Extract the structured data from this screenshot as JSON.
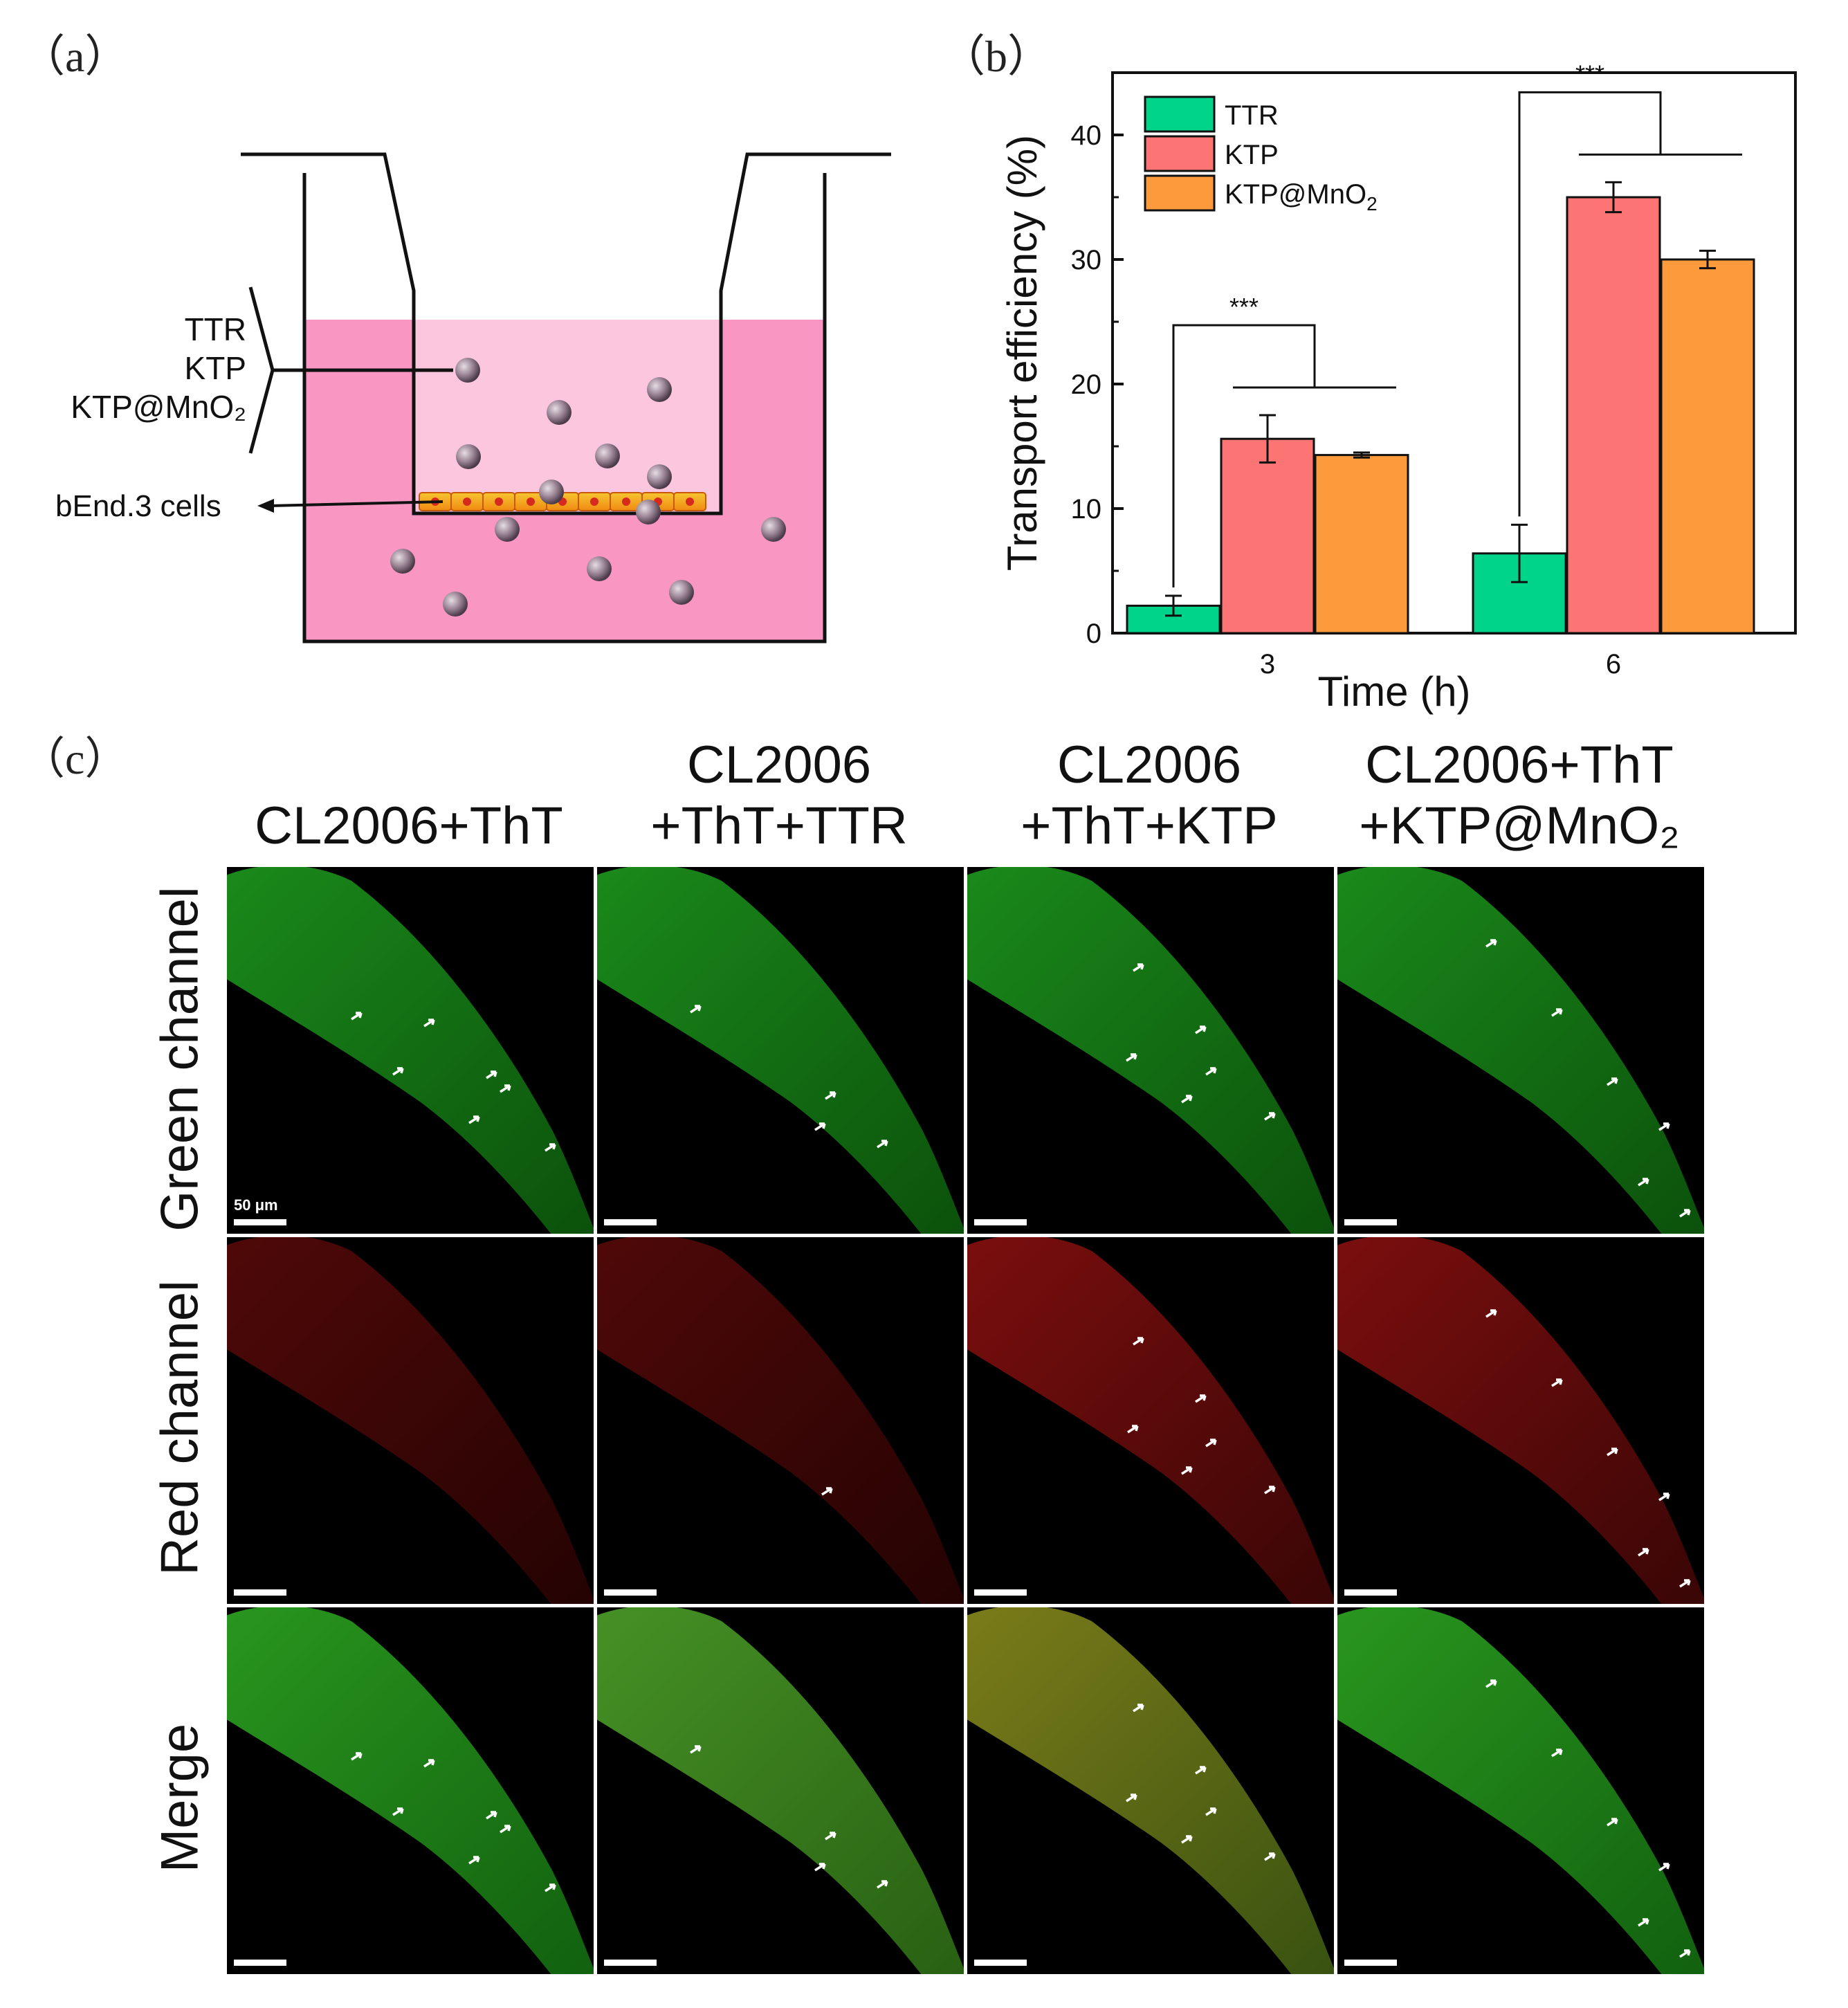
{
  "panels": {
    "a": "（a）",
    "b": "（b）",
    "c": "（c）"
  },
  "diagram": {
    "labels": [
      "TTR",
      "KTP",
      "KTP@MnO₂"
    ],
    "cells_label": "bEnd.3 cells"
  },
  "chart_data": {
    "type": "bar",
    "categories": [
      "3",
      "6"
    ],
    "series": [
      {
        "name": "TTR",
        "color": "#00d48a",
        "values": [
          2.2,
          6.4
        ],
        "errors": [
          0.8,
          2.3
        ]
      },
      {
        "name": "KTP",
        "color": "#fc7474",
        "values": [
          15.6,
          35.0
        ],
        "errors": [
          1.9,
          1.2
        ]
      },
      {
        "name": "KTP@MnO",
        "sub": "2",
        "color": "#fd9a3c",
        "values": [
          14.3,
          30.0
        ],
        "errors": [
          0.2,
          0.7
        ]
      }
    ],
    "xlabel": "Time (h)",
    "ylabel": "Transport efficiency (%)",
    "ylim": [
      0,
      45
    ],
    "yticks": [
      0,
      10,
      20,
      30,
      40
    ],
    "significance": [
      "***",
      "***"
    ],
    "legend": "top-left"
  },
  "microscopy": {
    "columns": [
      [
        "CL2006+ThT"
      ],
      [
        "CL2006",
        "+ThT+TTR"
      ],
      [
        "CL2006",
        "+ThT+KTP"
      ],
      [
        "CL2006+ThT",
        "+KTP@MnO₂"
      ]
    ],
    "rows": [
      "Green channel",
      "Red channel",
      "Merge"
    ],
    "scale_label": "50 μm"
  }
}
